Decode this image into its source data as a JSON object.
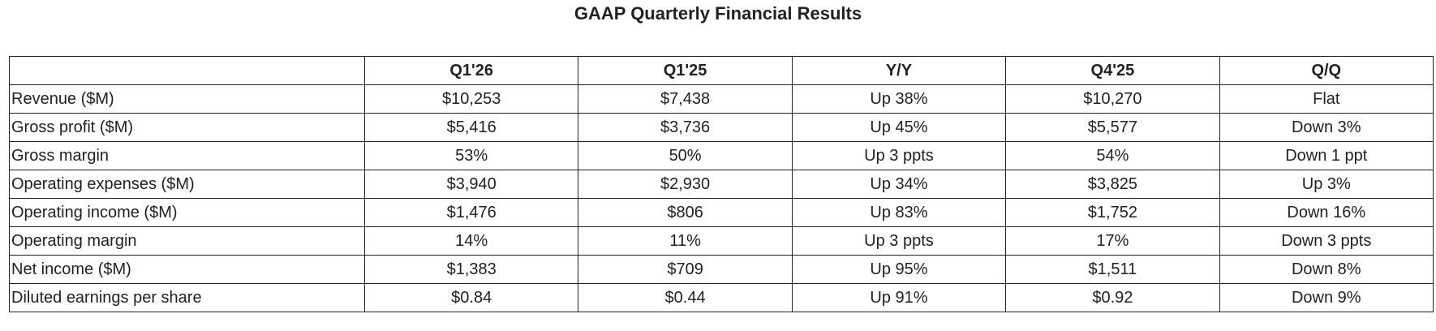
{
  "title": "GAAP Quarterly Financial Results",
  "table": {
    "header": [
      "Q1'26",
      "Q1'25",
      "Y/Y",
      "Q4'25",
      "Q/Q"
    ],
    "rows": [
      [
        "Revenue ($M)",
        "$10,253",
        "$7,438",
        "Up 38%",
        "$10,270",
        "Flat"
      ],
      [
        "Gross profit ($M)",
        "$5,416",
        "$3,736",
        "Up 45%",
        "$5,577",
        "Down 3%"
      ],
      [
        "Gross margin",
        "53%",
        "50%",
        "Up 3 ppts",
        "54%",
        "Down 1 ppt"
      ],
      [
        "Operating expenses ($M)",
        "$3,940",
        "$2,930",
        "Up 34%",
        "$3,825",
        "Up 3%"
      ],
      [
        "Operating income ($M)",
        "$1,476",
        "$806",
        "Up 83%",
        "$1,752",
        "Down 16%"
      ],
      [
        "Operating margin",
        "14%",
        "11%",
        "Up 3 ppts",
        "17%",
        "Down 3 ppts"
      ],
      [
        "Net income ($M)",
        "$1,383",
        "$709",
        "Up 95%",
        "$1,511",
        "Down 8%"
      ],
      [
        "Diluted earnings per share",
        "$0.84",
        "$0.44",
        "Up 91%",
        "$0.92",
        "Down 9%"
      ]
    ]
  }
}
